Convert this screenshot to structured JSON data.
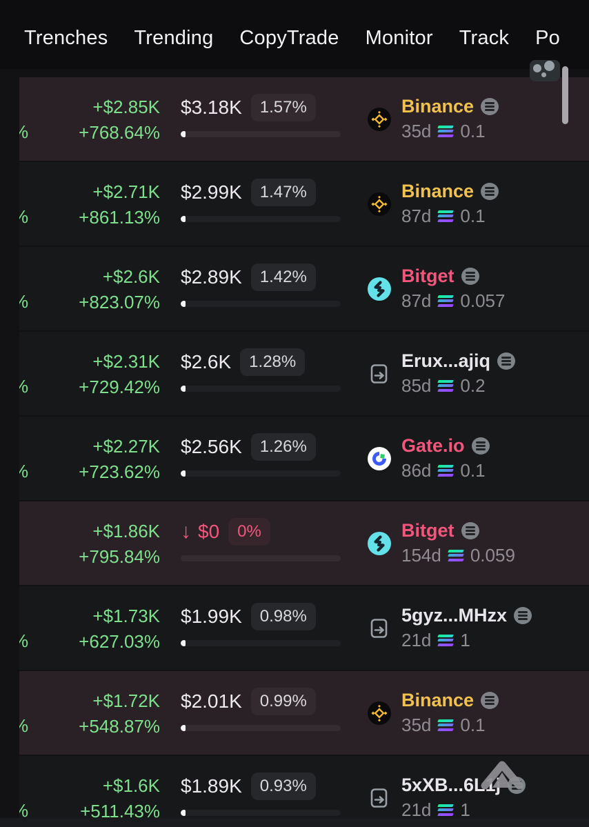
{
  "nav": {
    "items": [
      "Trenches",
      "Trending",
      "CopyTrade",
      "Monitor",
      "Track",
      "Po"
    ]
  },
  "colors": {
    "profit_green": "#7ee08d",
    "loss_pink": "#f2567c",
    "binance_gold": "#f0c14e",
    "row_highlight": "#2a2126",
    "row_normal": "#17181a"
  },
  "table": {
    "rows": [
      {
        "left_cut": "%",
        "pnl_usd": "+$2.85K",
        "pnl_pct": "+768.64%",
        "value": "$3.18K",
        "value_pct": "1.57%",
        "value_down": false,
        "bar_fill_pct": 3,
        "source": {
          "name": "Binance",
          "kind": "binance"
        },
        "age": "35d",
        "chain": "solana",
        "amount": "0.1",
        "highlighted": true
      },
      {
        "left_cut": "%",
        "pnl_usd": "+$2.71K",
        "pnl_pct": "+861.13%",
        "value": "$2.99K",
        "value_pct": "1.47%",
        "value_down": false,
        "bar_fill_pct": 3,
        "source": {
          "name": "Binance",
          "kind": "binance"
        },
        "age": "87d",
        "chain": "solana",
        "amount": "0.1",
        "highlighted": false
      },
      {
        "left_cut": "%",
        "pnl_usd": "+$2.6K",
        "pnl_pct": "+823.07%",
        "value": "$2.89K",
        "value_pct": "1.42%",
        "value_down": false,
        "bar_fill_pct": 3,
        "source": {
          "name": "Bitget",
          "kind": "bitget"
        },
        "age": "87d",
        "chain": "solana",
        "amount": "0.057",
        "highlighted": false
      },
      {
        "left_cut": "%",
        "pnl_usd": "+$2.31K",
        "pnl_pct": "+729.42%",
        "value": "$2.6K",
        "value_pct": "1.28%",
        "value_down": false,
        "bar_fill_pct": 3,
        "source": {
          "name": "Erux...ajiq",
          "kind": "wallet"
        },
        "age": "85d",
        "chain": "solana",
        "amount": "0.2",
        "highlighted": false
      },
      {
        "left_cut": "%",
        "pnl_usd": "+$2.27K",
        "pnl_pct": "+723.62%",
        "value": "$2.56K",
        "value_pct": "1.26%",
        "value_down": false,
        "bar_fill_pct": 3,
        "source": {
          "name": "Gate.io",
          "kind": "gate"
        },
        "age": "86d",
        "chain": "solana",
        "amount": "0.1",
        "highlighted": false
      },
      {
        "left_cut": "",
        "pnl_usd": "+$1.86K",
        "pnl_pct": "+795.84%",
        "value": "$0",
        "value_pct": "0%",
        "value_down": true,
        "bar_fill_pct": 0,
        "source": {
          "name": "Bitget",
          "kind": "bitget"
        },
        "age": "154d",
        "chain": "solana",
        "amount": "0.059",
        "highlighted": true
      },
      {
        "left_cut": "%",
        "pnl_usd": "+$1.73K",
        "pnl_pct": "+627.03%",
        "value": "$1.99K",
        "value_pct": "0.98%",
        "value_down": false,
        "bar_fill_pct": 3,
        "source": {
          "name": "5gyz...MHzx",
          "kind": "wallet"
        },
        "age": "21d",
        "chain": "solana",
        "amount": "1",
        "highlighted": false
      },
      {
        "left_cut": "%",
        "pnl_usd": "+$1.72K",
        "pnl_pct": "+548.87%",
        "value": "$2.01K",
        "value_pct": "0.99%",
        "value_down": false,
        "bar_fill_pct": 3,
        "source": {
          "name": "Binance",
          "kind": "binance"
        },
        "age": "35d",
        "chain": "solana",
        "amount": "0.1",
        "highlighted": true
      },
      {
        "left_cut": "%",
        "pnl_usd": "+$1.6K",
        "pnl_pct": "+511.43%",
        "value": "$1.89K",
        "value_pct": "0.93%",
        "value_down": false,
        "bar_fill_pct": 3,
        "source": {
          "name": "5xXB...6L1j",
          "kind": "wallet"
        },
        "age": "21d",
        "chain": "solana",
        "amount": "1",
        "highlighted": false
      }
    ]
  }
}
